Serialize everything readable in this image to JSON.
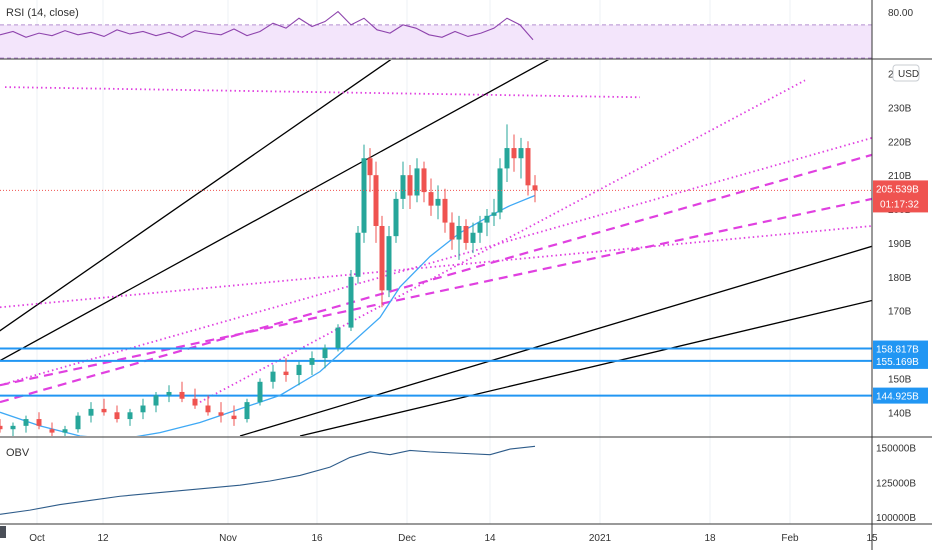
{
  "chart_data": [
    {
      "type": "line",
      "panel": "rsi",
      "title": "RSI (14, close)",
      "ylim": [
        30,
        100
      ],
      "y_ticks": [
        "80.00"
      ],
      "band": [
        30,
        70
      ],
      "color": "#8e44ad",
      "x": [
        0,
        13,
        26,
        39,
        52,
        65,
        78,
        91,
        104,
        117,
        130,
        143,
        156,
        169,
        182,
        195,
        208,
        221,
        234,
        247,
        260,
        273,
        286,
        299,
        312,
        325,
        338,
        351,
        364,
        377,
        390,
        403,
        416,
        429,
        442,
        455,
        468,
        481,
        494,
        507,
        520,
        533
      ],
      "values": [
        58,
        62,
        55,
        60,
        57,
        63,
        58,
        61,
        56,
        64,
        59,
        62,
        57,
        61,
        55,
        63,
        60,
        58,
        65,
        57,
        62,
        72,
        66,
        78,
        68,
        74,
        86,
        70,
        78,
        64,
        60,
        70,
        66,
        58,
        55,
        62,
        56,
        60,
        66,
        78,
        70,
        52
      ]
    },
    {
      "type": "line",
      "panel": "price",
      "ylabel": "USD",
      "ylim": [
        133,
        244
      ],
      "y_ticks": [
        "140B",
        "150B",
        "170B",
        "180B",
        "190B",
        "200B",
        "210B",
        "220B",
        "230B",
        "240B"
      ],
      "last_value_label": "205.539B",
      "countdown_label": "01:17:32",
      "x_ticks": [
        "Oct",
        "12",
        "Nov",
        "16",
        "Dec",
        "14",
        "2021",
        "18",
        "Feb",
        "15"
      ],
      "candles": [
        [
          0,
          136,
          138,
          134,
          135
        ],
        [
          13,
          135,
          137,
          133,
          136
        ],
        [
          26,
          136,
          139,
          134,
          138
        ],
        [
          39,
          138,
          140,
          135,
          136
        ],
        [
          52,
          135,
          137,
          133,
          134
        ],
        [
          65,
          134,
          136,
          132,
          135
        ],
        [
          78,
          135,
          140,
          134,
          139
        ],
        [
          91,
          139,
          143,
          137,
          141
        ],
        [
          104,
          141,
          144,
          139,
          140
        ],
        [
          117,
          140,
          142,
          137,
          138
        ],
        [
          130,
          138,
          141,
          136,
          140
        ],
        [
          143,
          140,
          144,
          138,
          142
        ],
        [
          156,
          142,
          146,
          140,
          145
        ],
        [
          169,
          145,
          148,
          143,
          146
        ],
        [
          182,
          146,
          149,
          143,
          144
        ],
        [
          195,
          144,
          147,
          141,
          142
        ],
        [
          208,
          142,
          145,
          139,
          140
        ],
        [
          221,
          140,
          143,
          137,
          139
        ],
        [
          234,
          139,
          142,
          136,
          138
        ],
        [
          247,
          138,
          144,
          137,
          143
        ],
        [
          260,
          143,
          150,
          142,
          149
        ],
        [
          273,
          149,
          154,
          147,
          152
        ],
        [
          286,
          152,
          156,
          149,
          151
        ],
        [
          299,
          151,
          155,
          148,
          154
        ],
        [
          312,
          154,
          158,
          151,
          156
        ],
        [
          325,
          156,
          160,
          153,
          159
        ],
        [
          338,
          159,
          166,
          158,
          165
        ],
        [
          351,
          165,
          182,
          164,
          180
        ],
        [
          358,
          180,
          195,
          178,
          193
        ],
        [
          364,
          193,
          219,
          190,
          215
        ],
        [
          370,
          215,
          218,
          205,
          210
        ],
        [
          376,
          210,
          214,
          190,
          195
        ],
        [
          382,
          195,
          198,
          171,
          176
        ],
        [
          389,
          176,
          195,
          174,
          192
        ],
        [
          396,
          192,
          205,
          190,
          203
        ],
        [
          403,
          203,
          214,
          200,
          210
        ],
        [
          410,
          210,
          213,
          200,
          204
        ],
        [
          417,
          204,
          215,
          202,
          212
        ],
        [
          424,
          212,
          214,
          202,
          205
        ],
        [
          431,
          205,
          209,
          198,
          201
        ],
        [
          438,
          201,
          207,
          197,
          203
        ],
        [
          445,
          203,
          206,
          193,
          196
        ],
        [
          452,
          196,
          199,
          188,
          191
        ],
        [
          459,
          191,
          198,
          185,
          195
        ],
        [
          466,
          195,
          197,
          188,
          190
        ],
        [
          473,
          190,
          196,
          187,
          193
        ],
        [
          480,
          193,
          198,
          190,
          196
        ],
        [
          487,
          196,
          200,
          192,
          198
        ],
        [
          494,
          198,
          203,
          195,
          199
        ],
        [
          500,
          199,
          215,
          197,
          212
        ],
        [
          507,
          212,
          225,
          208,
          218
        ],
        [
          514,
          218,
          222,
          211,
          215
        ],
        [
          521,
          215,
          221,
          209,
          218
        ],
        [
          528,
          218,
          220,
          204,
          207
        ],
        [
          535,
          207,
          210,
          202,
          205.5
        ]
      ],
      "ma": {
        "color": "#3fa9f5",
        "x": [
          0,
          40,
          80,
          120,
          160,
          200,
          240,
          280,
          320,
          350,
          380,
          400,
          430,
          460,
          490,
          510,
          535
        ],
        "values": [
          140,
          136,
          133,
          132,
          134,
          137,
          141,
          145,
          152,
          160,
          168,
          177,
          186,
          193,
          198,
          201,
          204
        ]
      },
      "hlines": [
        {
          "value": 158.817,
          "label": "158.817B",
          "color": "#2196f3"
        },
        {
          "value": 155.169,
          "label": "155.169B",
          "color": "#2196f3"
        },
        {
          "value": 144.925,
          "label": "144.925B",
          "color": "#2196f3"
        }
      ],
      "trendlines": [
        {
          "style": "solid",
          "color": "#000000",
          "x1": -20,
          "y1": 160,
          "x2": 400,
          "y2": 246
        },
        {
          "style": "solid",
          "color": "#000000",
          "x1": -20,
          "y1": 152,
          "x2": 560,
          "y2": 246
        },
        {
          "style": "solid",
          "color": "#000000",
          "x1": 240,
          "y1": 133,
          "x2": 872,
          "y2": 189
        },
        {
          "style": "solid",
          "color": "#000000",
          "x1": 300,
          "y1": 133,
          "x2": 872,
          "y2": 173
        },
        {
          "style": "dotted",
          "color": "#e040e0",
          "x1": 5,
          "y1": 236,
          "x2": 640,
          "y2": 233
        },
        {
          "style": "dotted",
          "color": "#e040e0",
          "x1": 0,
          "y1": 171,
          "x2": 872,
          "y2": 195
        },
        {
          "style": "dotted",
          "color": "#e040e0",
          "x1": 0,
          "y1": 148,
          "x2": 872,
          "y2": 221
        },
        {
          "style": "dotted",
          "color": "#e040e0",
          "x1": 200,
          "y1": 143,
          "x2": 805,
          "y2": 238
        },
        {
          "style": "dashed",
          "color": "#e040e0",
          "x1": 0,
          "y1": 143,
          "x2": 872,
          "y2": 216
        },
        {
          "style": "dashed",
          "color": "#e040e0",
          "x1": 0,
          "y1": 148,
          "x2": 872,
          "y2": 203
        }
      ]
    },
    {
      "type": "line",
      "panel": "obv",
      "title": "OBV",
      "ylim": [
        95000,
        157000
      ],
      "y_ticks": [
        "150000B",
        "125000B",
        "100000B"
      ],
      "color": "#2e5c8a",
      "x": [
        0,
        30,
        60,
        90,
        120,
        150,
        180,
        210,
        240,
        270,
        300,
        330,
        350,
        370,
        390,
        410,
        430,
        460,
        490,
        510,
        535
      ],
      "values": [
        102000,
        105000,
        109000,
        112000,
        115000,
        117000,
        119000,
        121000,
        123000,
        126000,
        130000,
        136000,
        143000,
        147000,
        145000,
        148000,
        147000,
        146000,
        145000,
        149000,
        151000
      ]
    }
  ]
}
